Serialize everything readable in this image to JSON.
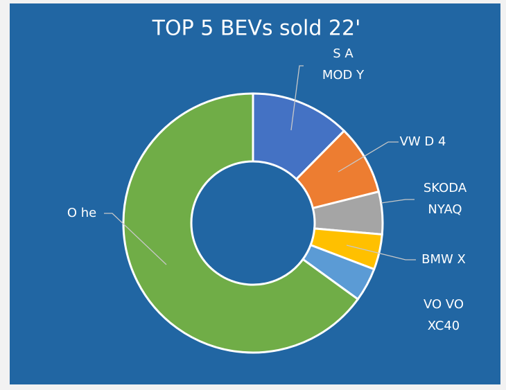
{
  "chart_data": {
    "type": "donut",
    "title": "TOP 5 BEVs sold 22'",
    "categories": [
      "S A\nMOD Y",
      "VW D 4",
      "SKODA\nNYAQ",
      "BMW X",
      "VO VO\nXC40",
      "O he"
    ],
    "values": [
      12.4,
      8.7,
      5.3,
      4.4,
      4.2,
      65
    ],
    "colors": [
      "#4472c4",
      "#ed7d31",
      "#a5a5a5",
      "#ffc000",
      "#5b9bd5",
      "#70ad47"
    ]
  }
}
